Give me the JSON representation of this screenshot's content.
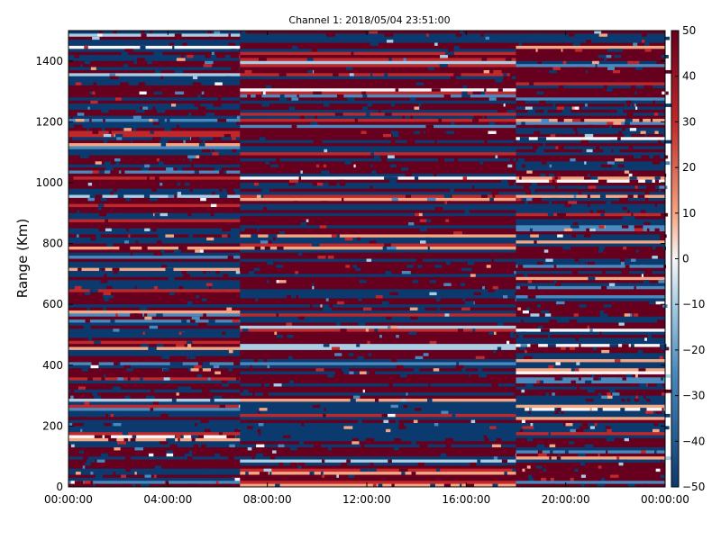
{
  "chart_data": {
    "type": "heatmap",
    "title": "Channel 1: 2018/05/04 23:51:00",
    "xlabel": "",
    "ylabel": "Range (Km)",
    "x_ticks": [
      "00:00:00",
      "04:00:00",
      "08:00:00",
      "12:00:00",
      "16:00:00",
      "20:00:00",
      "00:00:00"
    ],
    "x_tick_hours": [
      0,
      4,
      8,
      12,
      16,
      20,
      24
    ],
    "xlim_hours": [
      0,
      24
    ],
    "y_ticks": [
      0,
      200,
      400,
      600,
      800,
      1000,
      1200,
      1400
    ],
    "ylim": [
      0,
      1500
    ],
    "colorbar": {
      "range": [
        -50,
        50
      ],
      "ticks": [
        50,
        40,
        30,
        20,
        10,
        0,
        -10,
        -20,
        -30,
        -40,
        -50
      ],
      "colors": {
        "min": "#0b3a6f",
        "low": "#4a89bd",
        "mid_low": "#a9cde3",
        "mid": "#f7f7f7",
        "mid_high": "#f4a582",
        "high": "#c0282b",
        "max": "#67001f"
      }
    },
    "segments": [
      {
        "start_hour": 0.0,
        "end_hour": 6.9,
        "description_note": ""
      },
      {
        "start_hour": 6.9,
        "end_hour": 18.0,
        "description_note": ""
      },
      {
        "start_hour": 18.0,
        "end_hour": 24.0,
        "description_note": ""
      }
    ],
    "grid": false,
    "legend": "colorbar-right"
  }
}
